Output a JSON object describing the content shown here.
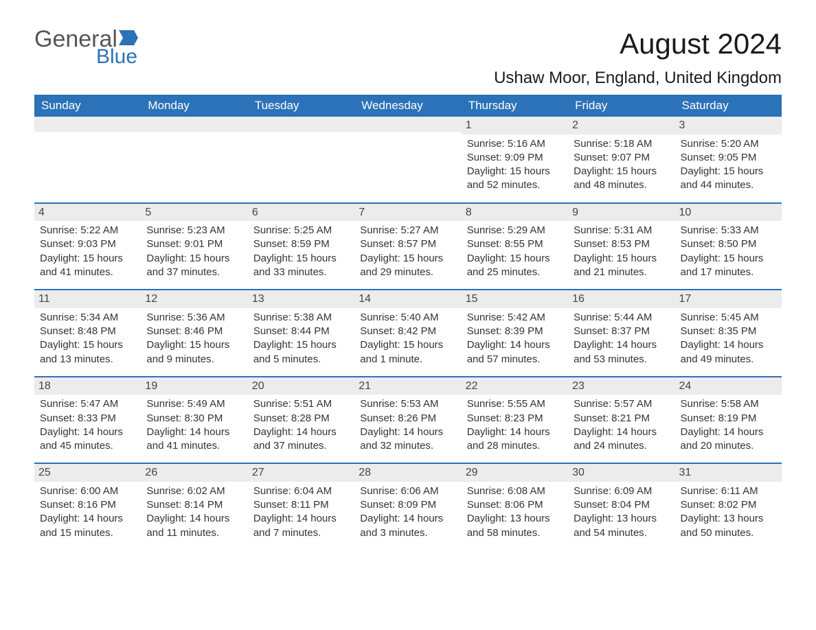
{
  "logo": {
    "word1": "General",
    "word2": "Blue",
    "word1_color": "#555555",
    "word2_color": "#2b72b8",
    "flag_color": "#2b72b8"
  },
  "header": {
    "month_title": "August 2024",
    "location": "Ushaw Moor, England, United Kingdom"
  },
  "styling": {
    "header_bg": "#2b72b8",
    "header_text": "#ffffff",
    "daynum_bg": "#ececec",
    "row_border": "#2b72b8",
    "body_text": "#333333",
    "page_bg": "#ffffff",
    "title_fontsize": 42,
    "location_fontsize": 24,
    "weekday_fontsize": 17,
    "cell_fontsize": 15
  },
  "weekdays": [
    "Sunday",
    "Monday",
    "Tuesday",
    "Wednesday",
    "Thursday",
    "Friday",
    "Saturday"
  ],
  "weeks": [
    [
      {
        "empty": true
      },
      {
        "empty": true
      },
      {
        "empty": true
      },
      {
        "empty": true
      },
      {
        "day": "1",
        "sunrise": "Sunrise: 5:16 AM",
        "sunset": "Sunset: 9:09 PM",
        "daylight": "Daylight: 15 hours and 52 minutes."
      },
      {
        "day": "2",
        "sunrise": "Sunrise: 5:18 AM",
        "sunset": "Sunset: 9:07 PM",
        "daylight": "Daylight: 15 hours and 48 minutes."
      },
      {
        "day": "3",
        "sunrise": "Sunrise: 5:20 AM",
        "sunset": "Sunset: 9:05 PM",
        "daylight": "Daylight: 15 hours and 44 minutes."
      }
    ],
    [
      {
        "day": "4",
        "sunrise": "Sunrise: 5:22 AM",
        "sunset": "Sunset: 9:03 PM",
        "daylight": "Daylight: 15 hours and 41 minutes."
      },
      {
        "day": "5",
        "sunrise": "Sunrise: 5:23 AM",
        "sunset": "Sunset: 9:01 PM",
        "daylight": "Daylight: 15 hours and 37 minutes."
      },
      {
        "day": "6",
        "sunrise": "Sunrise: 5:25 AM",
        "sunset": "Sunset: 8:59 PM",
        "daylight": "Daylight: 15 hours and 33 minutes."
      },
      {
        "day": "7",
        "sunrise": "Sunrise: 5:27 AM",
        "sunset": "Sunset: 8:57 PM",
        "daylight": "Daylight: 15 hours and 29 minutes."
      },
      {
        "day": "8",
        "sunrise": "Sunrise: 5:29 AM",
        "sunset": "Sunset: 8:55 PM",
        "daylight": "Daylight: 15 hours and 25 minutes."
      },
      {
        "day": "9",
        "sunrise": "Sunrise: 5:31 AM",
        "sunset": "Sunset: 8:53 PM",
        "daylight": "Daylight: 15 hours and 21 minutes."
      },
      {
        "day": "10",
        "sunrise": "Sunrise: 5:33 AM",
        "sunset": "Sunset: 8:50 PM",
        "daylight": "Daylight: 15 hours and 17 minutes."
      }
    ],
    [
      {
        "day": "11",
        "sunrise": "Sunrise: 5:34 AM",
        "sunset": "Sunset: 8:48 PM",
        "daylight": "Daylight: 15 hours and 13 minutes."
      },
      {
        "day": "12",
        "sunrise": "Sunrise: 5:36 AM",
        "sunset": "Sunset: 8:46 PM",
        "daylight": "Daylight: 15 hours and 9 minutes."
      },
      {
        "day": "13",
        "sunrise": "Sunrise: 5:38 AM",
        "sunset": "Sunset: 8:44 PM",
        "daylight": "Daylight: 15 hours and 5 minutes."
      },
      {
        "day": "14",
        "sunrise": "Sunrise: 5:40 AM",
        "sunset": "Sunset: 8:42 PM",
        "daylight": "Daylight: 15 hours and 1 minute."
      },
      {
        "day": "15",
        "sunrise": "Sunrise: 5:42 AM",
        "sunset": "Sunset: 8:39 PM",
        "daylight": "Daylight: 14 hours and 57 minutes."
      },
      {
        "day": "16",
        "sunrise": "Sunrise: 5:44 AM",
        "sunset": "Sunset: 8:37 PM",
        "daylight": "Daylight: 14 hours and 53 minutes."
      },
      {
        "day": "17",
        "sunrise": "Sunrise: 5:45 AM",
        "sunset": "Sunset: 8:35 PM",
        "daylight": "Daylight: 14 hours and 49 minutes."
      }
    ],
    [
      {
        "day": "18",
        "sunrise": "Sunrise: 5:47 AM",
        "sunset": "Sunset: 8:33 PM",
        "daylight": "Daylight: 14 hours and 45 minutes."
      },
      {
        "day": "19",
        "sunrise": "Sunrise: 5:49 AM",
        "sunset": "Sunset: 8:30 PM",
        "daylight": "Daylight: 14 hours and 41 minutes."
      },
      {
        "day": "20",
        "sunrise": "Sunrise: 5:51 AM",
        "sunset": "Sunset: 8:28 PM",
        "daylight": "Daylight: 14 hours and 37 minutes."
      },
      {
        "day": "21",
        "sunrise": "Sunrise: 5:53 AM",
        "sunset": "Sunset: 8:26 PM",
        "daylight": "Daylight: 14 hours and 32 minutes."
      },
      {
        "day": "22",
        "sunrise": "Sunrise: 5:55 AM",
        "sunset": "Sunset: 8:23 PM",
        "daylight": "Daylight: 14 hours and 28 minutes."
      },
      {
        "day": "23",
        "sunrise": "Sunrise: 5:57 AM",
        "sunset": "Sunset: 8:21 PM",
        "daylight": "Daylight: 14 hours and 24 minutes."
      },
      {
        "day": "24",
        "sunrise": "Sunrise: 5:58 AM",
        "sunset": "Sunset: 8:19 PM",
        "daylight": "Daylight: 14 hours and 20 minutes."
      }
    ],
    [
      {
        "day": "25",
        "sunrise": "Sunrise: 6:00 AM",
        "sunset": "Sunset: 8:16 PM",
        "daylight": "Daylight: 14 hours and 15 minutes."
      },
      {
        "day": "26",
        "sunrise": "Sunrise: 6:02 AM",
        "sunset": "Sunset: 8:14 PM",
        "daylight": "Daylight: 14 hours and 11 minutes."
      },
      {
        "day": "27",
        "sunrise": "Sunrise: 6:04 AM",
        "sunset": "Sunset: 8:11 PM",
        "daylight": "Daylight: 14 hours and 7 minutes."
      },
      {
        "day": "28",
        "sunrise": "Sunrise: 6:06 AM",
        "sunset": "Sunset: 8:09 PM",
        "daylight": "Daylight: 14 hours and 3 minutes."
      },
      {
        "day": "29",
        "sunrise": "Sunrise: 6:08 AM",
        "sunset": "Sunset: 8:06 PM",
        "daylight": "Daylight: 13 hours and 58 minutes."
      },
      {
        "day": "30",
        "sunrise": "Sunrise: 6:09 AM",
        "sunset": "Sunset: 8:04 PM",
        "daylight": "Daylight: 13 hours and 54 minutes."
      },
      {
        "day": "31",
        "sunrise": "Sunrise: 6:11 AM",
        "sunset": "Sunset: 8:02 PM",
        "daylight": "Daylight: 13 hours and 50 minutes."
      }
    ]
  ]
}
